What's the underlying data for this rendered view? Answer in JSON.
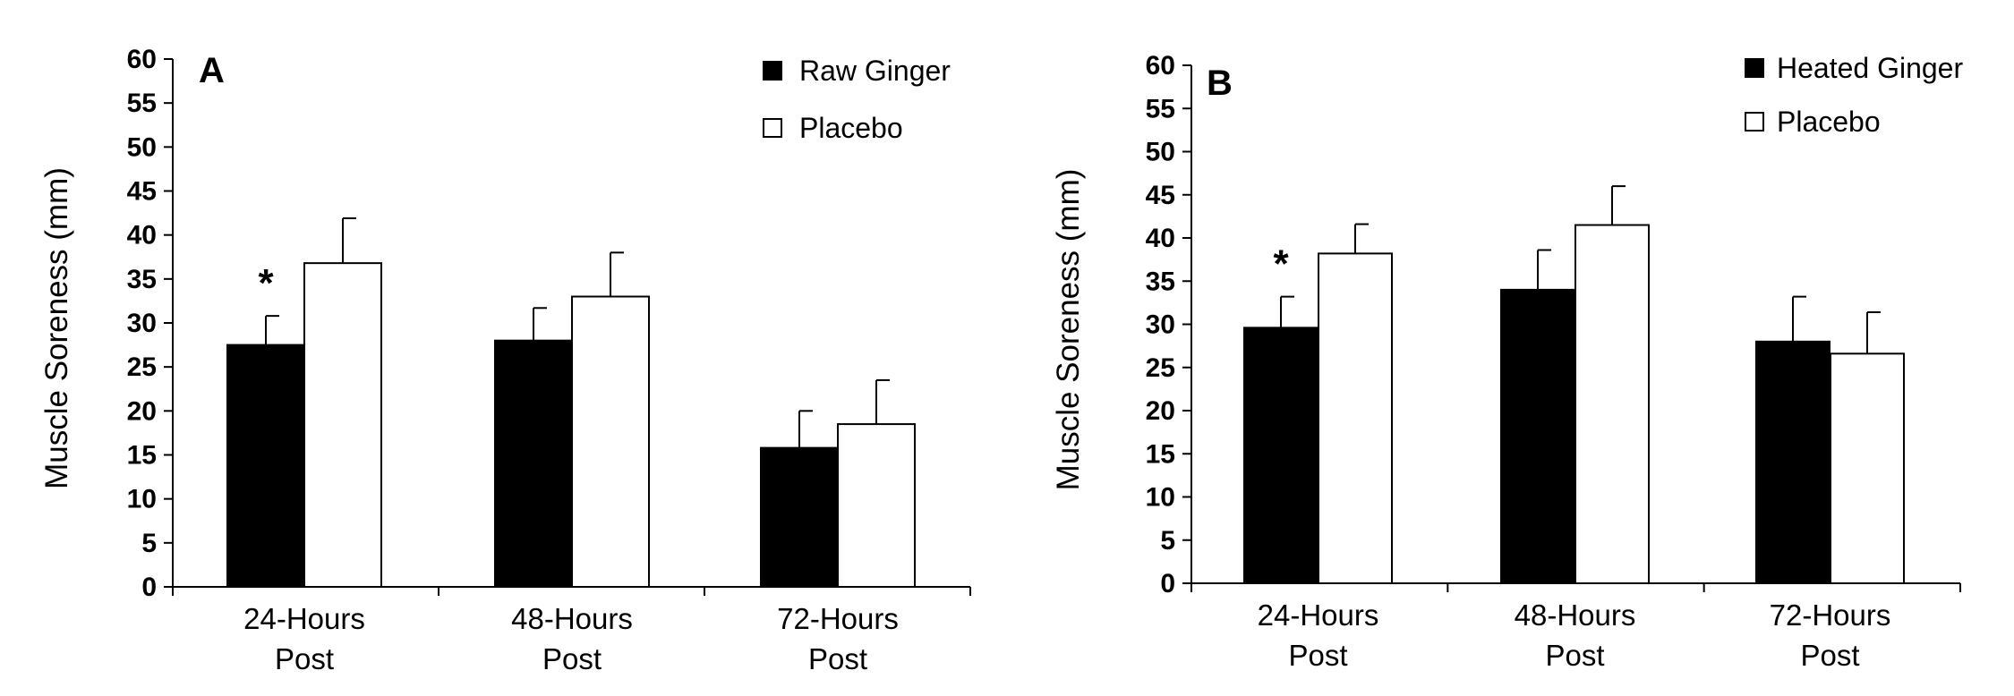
{
  "chart_data": [
    {
      "type": "bar",
      "panel_label": "A",
      "ylabel": "Muscle Soreness (mm)",
      "ylim": [
        0,
        60
      ],
      "ytick_step": 5,
      "categories": [
        [
          "24-Hours",
          "Post"
        ],
        [
          "48-Hours",
          "Post"
        ],
        [
          "72-Hours",
          "Post"
        ]
      ],
      "series": [
        {
          "name": "Raw Ginger",
          "color": "#000000",
          "values": [
            27.5,
            28,
            15.8
          ],
          "errors": [
            3.3,
            3.7,
            4.2
          ]
        },
        {
          "name": "Placebo",
          "color": "#ffffff",
          "values": [
            36.8,
            33,
            18.5
          ],
          "errors": [
            5.1,
            5,
            5
          ]
        }
      ],
      "significance": [
        {
          "category_index": 0,
          "series_index": 0,
          "marker": "*"
        }
      ],
      "legend_position": "top-right"
    },
    {
      "type": "bar",
      "panel_label": "B",
      "ylabel": "Muscle Soreness (mm)",
      "ylim": [
        0,
        60
      ],
      "ytick_step": 5,
      "categories": [
        [
          "24-Hours",
          "Post"
        ],
        [
          "48-Hours",
          "Post"
        ],
        [
          "72-Hours",
          "Post"
        ]
      ],
      "series": [
        {
          "name": "Heated Ginger",
          "color": "#000000",
          "values": [
            29.6,
            34,
            28
          ],
          "errors": [
            3.6,
            4.6,
            5.2
          ]
        },
        {
          "name": "Placebo",
          "color": "#ffffff",
          "values": [
            38.2,
            41.5,
            26.6
          ],
          "errors": [
            3.4,
            4.5,
            4.8
          ]
        }
      ],
      "significance": [
        {
          "category_index": 0,
          "series_index": 0,
          "marker": "*"
        }
      ],
      "legend_position": "top-right"
    }
  ]
}
